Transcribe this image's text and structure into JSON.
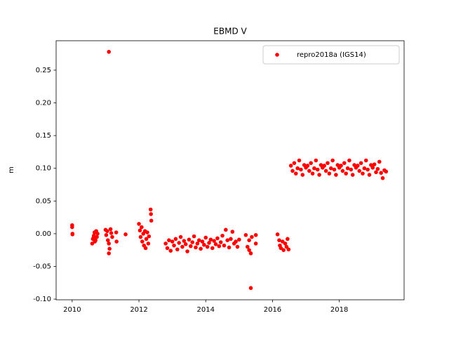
{
  "chart_data": {
    "type": "scatter",
    "title": "EBMD V",
    "ylabel": "m",
    "x": [
      2010.0,
      2010.0,
      2010.01,
      2010.01,
      2010.6,
      2010.62,
      2010.65,
      2010.67,
      2010.7,
      2010.72,
      2010.74,
      2010.76,
      2010.68,
      2010.64,
      2011.0,
      2011.02,
      2011.05,
      2011.07,
      2011.1,
      2011.1,
      2011.12,
      2011.15,
      2011.17,
      2011.2,
      2011.1,
      2011.32,
      2011.33,
      2011.6,
      2012.0,
      2012.03,
      2012.05,
      2012.08,
      2012.1,
      2012.13,
      2012.15,
      2012.18,
      2012.2,
      2012.22,
      2012.25,
      2012.28,
      2012.3,
      2012.35,
      2012.36,
      2012.37,
      2012.8,
      2012.85,
      2012.9,
      2012.95,
      2013.0,
      2013.05,
      2013.1,
      2013.15,
      2013.2,
      2013.25,
      2013.3,
      2013.35,
      2013.4,
      2013.45,
      2013.5,
      2013.55,
      2013.6,
      2013.65,
      2013.7,
      2013.75,
      2013.8,
      2013.85,
      2013.9,
      2013.95,
      2014.0,
      2014.05,
      2014.1,
      2014.15,
      2014.2,
      2014.25,
      2014.3,
      2014.35,
      2014.4,
      2014.45,
      2014.5,
      2014.55,
      2014.6,
      2014.65,
      2014.7,
      2014.75,
      2014.8,
      2014.85,
      2014.9,
      2014.95,
      2015.0,
      2015.2,
      2015.25,
      2015.3,
      2015.35,
      2015.35,
      2015.38,
      2015.5,
      2015.5,
      2015.3,
      2016.15,
      2016.2,
      2016.22,
      2016.25,
      2016.3,
      2016.33,
      2016.38,
      2016.42,
      2016.45,
      2016.48,
      2016.55,
      2016.6,
      2016.65,
      2016.7,
      2016.75,
      2016.8,
      2016.85,
      2016.9,
      2016.95,
      2017.0,
      2017.05,
      2017.1,
      2017.15,
      2017.2,
      2017.25,
      2017.3,
      2017.35,
      2017.4,
      2017.45,
      2017.5,
      2017.55,
      2017.6,
      2017.65,
      2017.7,
      2017.75,
      2017.8,
      2017.85,
      2017.9,
      2017.95,
      2018.0,
      2018.05,
      2018.1,
      2018.15,
      2018.2,
      2018.25,
      2018.3,
      2018.35,
      2018.4,
      2018.45,
      2018.5,
      2018.55,
      2018.6,
      2018.65,
      2018.7,
      2018.75,
      2018.8,
      2018.85,
      2018.9,
      2018.95,
      2019.0,
      2019.05,
      2019.1,
      2019.15,
      2019.2,
      2019.25,
      2019.3,
      2019.35,
      2019.4
    ],
    "series": [
      {
        "name": "repro2018a (IGS14)",
        "color": "#ff0000",
        "values": [
          0.013,
          0.01,
          0.0,
          -0.001,
          -0.015,
          -0.008,
          -0.003,
          0.002,
          -0.01,
          0.004,
          -0.005,
          0.0,
          -0.012,
          -0.006,
          0.006,
          -0.002,
          0.004,
          -0.01,
          0.278,
          -0.03,
          -0.023,
          0.007,
          0.001,
          -0.005,
          -0.015,
          0.002,
          -0.012,
          -0.001,
          0.015,
          0.005,
          -0.005,
          0.01,
          -0.012,
          0.0,
          -0.018,
          0.004,
          -0.022,
          -0.008,
          0.002,
          -0.015,
          -0.004,
          0.037,
          0.03,
          0.02,
          -0.015,
          -0.022,
          -0.01,
          -0.026,
          -0.012,
          -0.018,
          -0.008,
          -0.024,
          -0.014,
          -0.005,
          -0.02,
          -0.011,
          -0.016,
          -0.027,
          -0.009,
          -0.019,
          -0.013,
          -0.004,
          -0.021,
          -0.015,
          -0.01,
          -0.023,
          -0.012,
          -0.017,
          -0.006,
          -0.02,
          -0.014,
          -0.009,
          -0.022,
          -0.011,
          -0.016,
          -0.007,
          -0.019,
          -0.013,
          -0.003,
          -0.018,
          0.006,
          -0.01,
          -0.021,
          -0.008,
          0.003,
          -0.015,
          -0.012,
          -0.02,
          -0.009,
          -0.002,
          -0.02,
          -0.01,
          -0.03,
          -0.083,
          -0.005,
          -0.002,
          -0.015,
          -0.025,
          -0.001,
          -0.01,
          -0.018,
          -0.022,
          -0.012,
          -0.025,
          -0.015,
          -0.02,
          -0.008,
          -0.024,
          0.104,
          0.096,
          0.108,
          0.092,
          0.1,
          0.112,
          0.098,
          0.09,
          0.105,
          0.101,
          0.104,
          0.096,
          0.108,
          0.092,
          0.1,
          0.112,
          0.098,
          0.09,
          0.105,
          0.101,
          0.104,
          0.096,
          0.108,
          0.092,
          0.1,
          0.112,
          0.098,
          0.09,
          0.105,
          0.101,
          0.104,
          0.096,
          0.108,
          0.092,
          0.1,
          0.112,
          0.098,
          0.09,
          0.105,
          0.101,
          0.104,
          0.096,
          0.108,
          0.092,
          0.1,
          0.112,
          0.098,
          0.09,
          0.105,
          0.101,
          0.106,
          0.094,
          0.099,
          0.11,
          0.093,
          0.085,
          0.097,
          0.095
        ]
      }
    ],
    "xlim": [
      2009.52,
      2019.94
    ],
    "ylim": [
      -0.101,
      0.295
    ],
    "xticks": [
      2010,
      2012,
      2014,
      2016,
      2018
    ],
    "yticks": [
      {
        "value": -0.1,
        "label": "-0.10"
      },
      -0.05,
      {
        "value": 0,
        "label": "0.00"
      },
      0.05,
      {
        "value": 0.1,
        "label": "0.10"
      },
      0.15,
      {
        "value": 0.2,
        "label": "0.20"
      },
      0.25
    ],
    "legend": "upper right",
    "grid": false
  }
}
